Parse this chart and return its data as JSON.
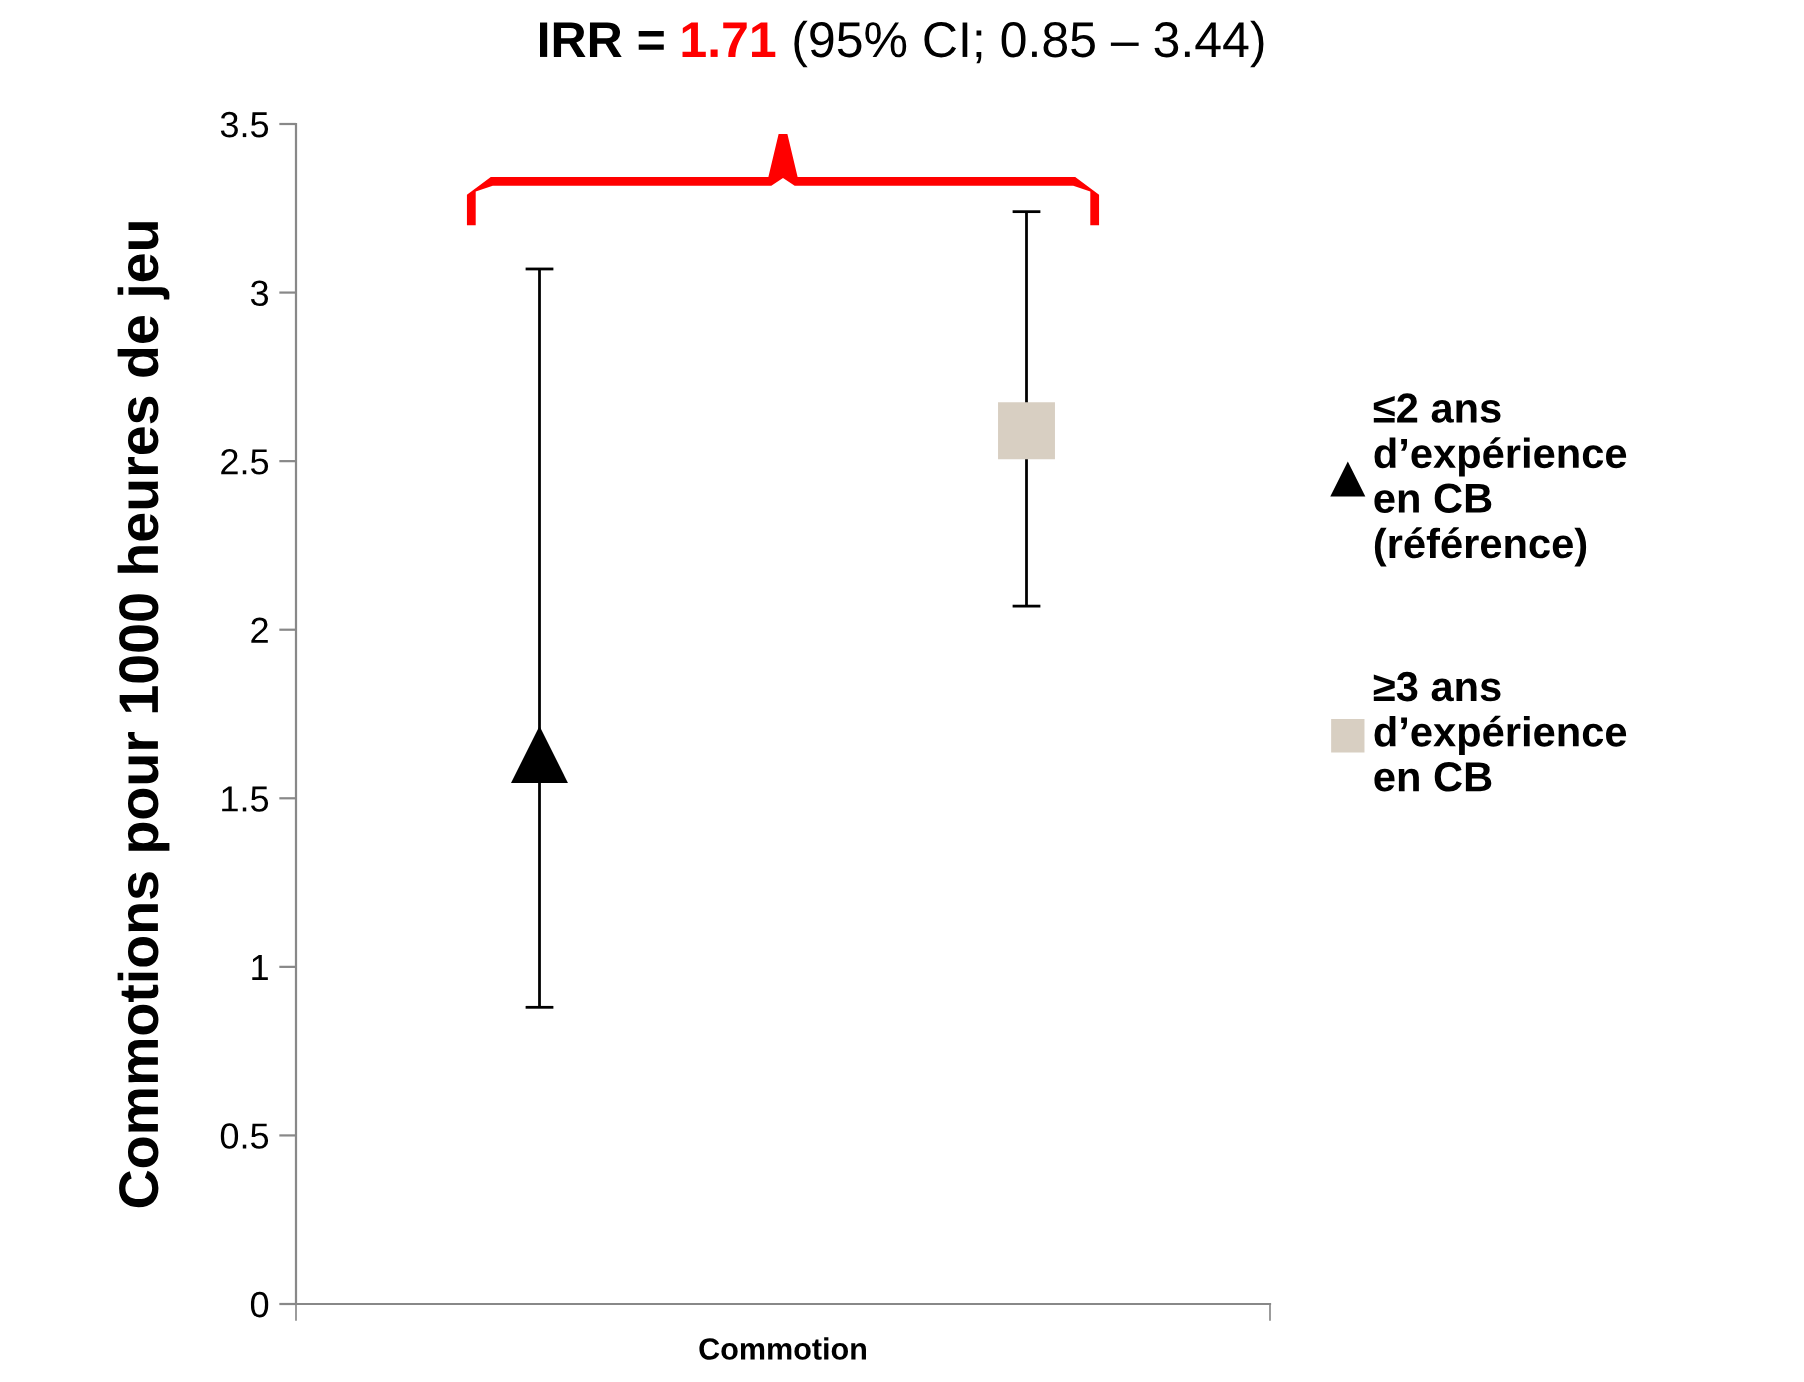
{
  "chart_data": {
    "type": "scatter",
    "title": "IRR = 1.71 (95% CI; 0.85 – 3.44)",
    "ylabel": "Commotions pour 1000 heures de jeu",
    "categories": [
      "Commotion"
    ],
    "series": [
      {
        "name": "≤2 ans\nd’expérience\nen CB\n(référence)",
        "color": "#000000",
        "marker": "triangle",
        "values": [
          1.63
        ],
        "errors": [
          [
            0.88,
            3.07
          ]
        ]
      },
      {
        "name": "≥3 ans\nd’expérience\nen CB",
        "color": "#d8cfc2",
        "marker": "square",
        "values": [
          2.59
        ],
        "errors": [
          [
            2.07,
            3.24
          ]
        ]
      }
    ],
    "ylim": [
      0,
      3.5
    ],
    "yticks": [
      0,
      0.5,
      1,
      1.5,
      2,
      2.5,
      3,
      3.5
    ],
    "grid": false,
    "legend": "right"
  }
}
